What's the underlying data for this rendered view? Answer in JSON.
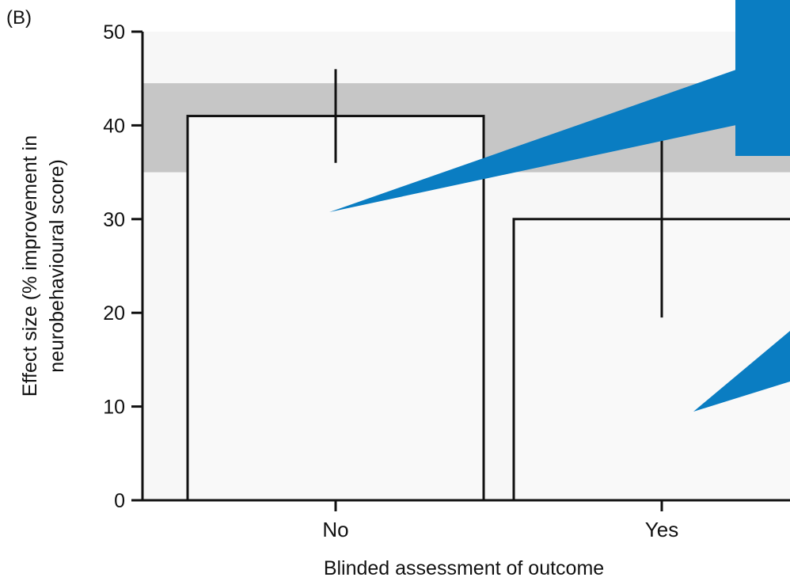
{
  "panel_label": "(B)",
  "colors": {
    "plot_background": "#f7f7f7",
    "band": "#c6c6c6",
    "bar_fill": "#f9f9f9",
    "ink": "#111111",
    "callout": "#0a7dc2"
  },
  "chart_data": {
    "type": "bar",
    "title": "",
    "xlabel": "Blinded assessment of outcome",
    "ylabel_line1": "Effect size (% improvement in",
    "ylabel_line2": "neurobehavioural score)",
    "categories": [
      "No",
      "Yes"
    ],
    "values": [
      41,
      30
    ],
    "error_low": [
      36,
      19.5
    ],
    "error_high": [
      46,
      38.5
    ],
    "reference_band": [
      35,
      44.5
    ],
    "ylim": [
      0,
      50
    ],
    "yticks": [
      "0",
      "10",
      "20",
      "30",
      "40",
      "50"
    ],
    "grid": false,
    "legend": "none"
  }
}
